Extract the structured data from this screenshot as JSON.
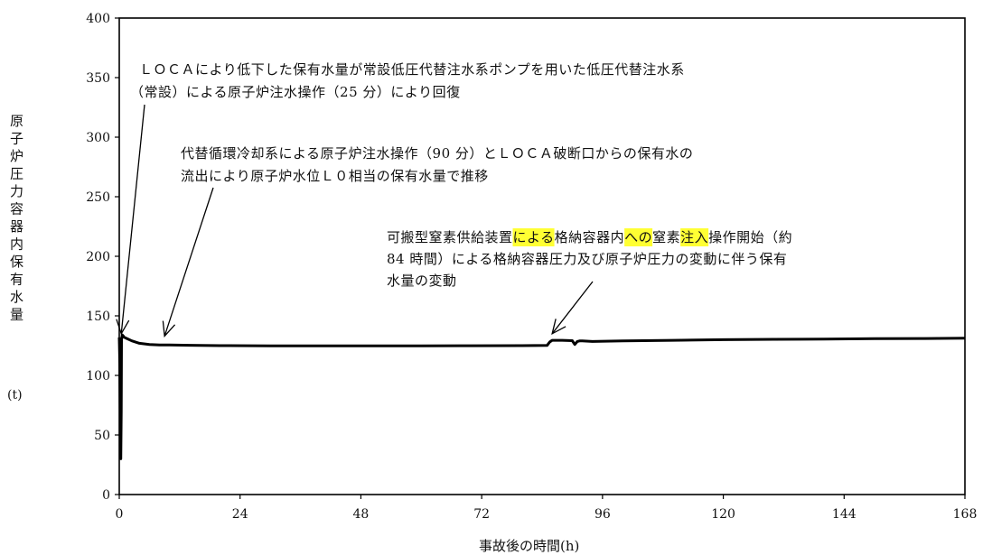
{
  "chart_data": {
    "type": "line",
    "xlabel": "事故後の時間(h)",
    "ylabel": "原子炉圧力容器内保有水量",
    "yunit": "(t)",
    "xlim": [
      0,
      168
    ],
    "ylim": [
      0,
      400
    ],
    "xticks": [
      0,
      24,
      48,
      72,
      96,
      120,
      144,
      168
    ],
    "yticks": [
      0,
      50,
      100,
      150,
      200,
      250,
      300,
      350,
      400
    ],
    "grid": false,
    "line_color": "#000000",
    "highlight_color": "#ffff33",
    "series": [
      {
        "x": [
          0,
          0.1,
          0.2,
          0.3,
          0.4,
          0.45,
          0.6,
          0.8,
          1.0,
          1.5,
          2.5,
          4,
          6,
          8,
          10,
          14,
          20,
          30,
          40,
          50,
          60,
          70,
          80,
          85,
          85.5,
          86,
          88,
          90,
          90.5,
          91,
          91.5,
          92,
          94,
          100,
          110,
          120,
          130,
          140,
          150,
          160,
          168
        ],
        "values": [
          132,
          110,
          60,
          30,
          70,
          130,
          134,
          133,
          132,
          131,
          129,
          127,
          126,
          125.5,
          125.5,
          125.3,
          125,
          124.8,
          124.8,
          124.8,
          124.8,
          124.9,
          125,
          125.2,
          128,
          129.5,
          129.5,
          129.2,
          126,
          128.5,
          129,
          129,
          128.5,
          129,
          129.5,
          130,
          130.3,
          130.5,
          130.8,
          131,
          131.2
        ]
      }
    ],
    "annotations": [
      {
        "lines": [
          "ＬＯＣＡにより低下した保有水量が常設低圧代替注水系ポンプを用いた低圧代替注水系",
          "（常設）による原子炉注水操作（25 分）により回復"
        ],
        "target": [
          0.4,
          135
        ]
      },
      {
        "lines": [
          "代替循環冷却系による原子炉注水操作（90 分）とＬＯＣＡ破断口からの保有水の",
          "流出により原子炉水位Ｌ０相当の保有水量で推移"
        ],
        "target": [
          9,
          133
        ]
      },
      {
        "lines": [
          "可搬型窒素供給装置による格納容器内への窒素注入操作開始（約",
          "84 時間）による格納容器圧力及び原子炉圧力の変動に伴う保有",
          "水量の変動"
        ],
        "highlighted": [
          "による",
          "への",
          "注入"
        ],
        "target": [
          86,
          135
        ]
      }
    ]
  }
}
